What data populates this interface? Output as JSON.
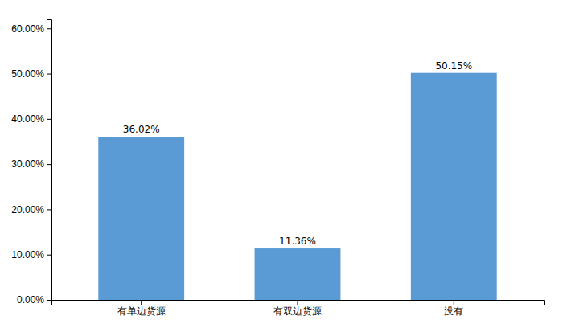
{
  "chart_data": {
    "type": "bar",
    "categories": [
      "有单边货源",
      "有双边货源",
      "没有"
    ],
    "values": [
      0.3602,
      0.1136,
      0.5015
    ],
    "value_labels": [
      "36.02%",
      "11.36%",
      "50.15%"
    ],
    "data_labels": true,
    "color": "#5B9BD5",
    "ylim": [
      0,
      0.62
    ],
    "yticks": [
      {
        "value": 0,
        "label": "0.00%"
      },
      {
        "value": 0.1,
        "label": "10.00%"
      },
      {
        "value": 0.2,
        "label": "20.00%"
      },
      {
        "value": 0.3,
        "label": "30.00%"
      },
      {
        "value": 0.4,
        "label": "40.00%"
      },
      {
        "value": 0.5,
        "label": "50.00%"
      },
      {
        "value": 0.6,
        "label": "60.00%"
      }
    ],
    "grid": false
  }
}
